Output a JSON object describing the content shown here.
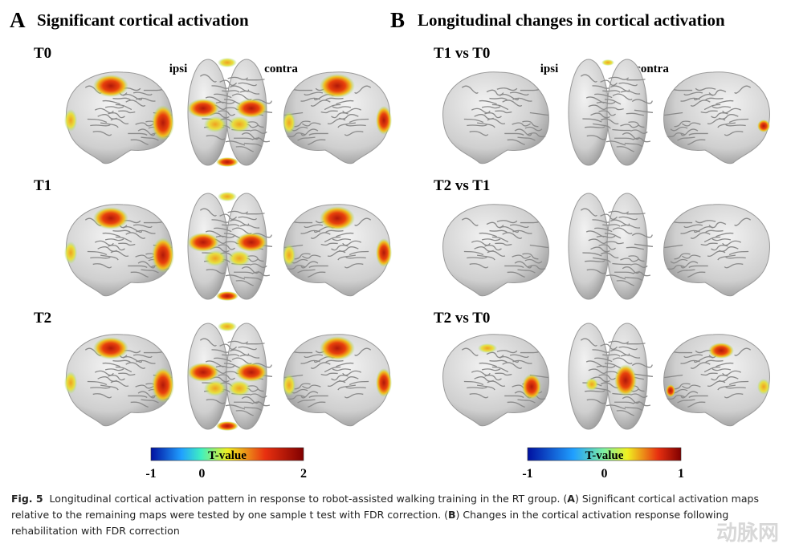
{
  "panels": [
    {
      "letter": "A",
      "title": "Significant cortical activation",
      "rows": [
        "T0",
        "T1",
        "T2"
      ],
      "ipsi": "ipsi",
      "contra": "contra",
      "colorbar": {
        "label": "T-value",
        "ticks": [
          -1,
          0,
          2
        ]
      }
    },
    {
      "letter": "B",
      "title": "Longitudinal changes in cortical activation",
      "rows": [
        "T1 vs T0",
        "T2 vs T1",
        "T2 vs T0"
      ],
      "ipsi": "ipsi",
      "contra": "contra",
      "colorbar": {
        "label": "T-value",
        "ticks": [
          -1,
          0,
          1
        ]
      }
    }
  ],
  "caption": {
    "label": "Fig. 5",
    "parts": [
      "Longitudinal cortical activation pattern in response to robot-assisted walking training in the RT group. (",
      "A",
      ") Significant cortical activation maps relative to the remaining maps were tested by one sample t test with FDR correction. (",
      "B",
      ") Changes in the cortical activation response following rehabilitation with FDR correction"
    ]
  },
  "watermark": "动脉网"
}
